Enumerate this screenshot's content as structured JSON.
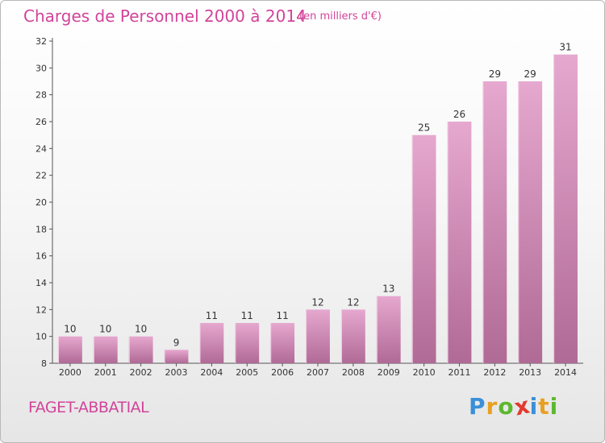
{
  "header": {
    "title": "Charges de Personnel 2000 à 2014",
    "subtitle": "(en milliers d'€)"
  },
  "footer": {
    "commune": "FAGET-ABBATIAL",
    "logo": {
      "text": "Proxiti",
      "letters": [
        {
          "char": "P",
          "color": "#3a8fd8"
        },
        {
          "char": "r",
          "color": "#e8a020"
        },
        {
          "char": "o",
          "color": "#5cb82e"
        },
        {
          "char": "x",
          "color": "#e23a2e"
        },
        {
          "char": "i",
          "color": "#3a8fd8"
        },
        {
          "char": "t",
          "color": "#e8a020"
        },
        {
          "char": "i",
          "color": "#5cb82e"
        }
      ]
    }
  },
  "colors": {
    "accent": "#d2449a",
    "bar_light": "#e6a8cf",
    "bar_dark": "#b06a96"
  },
  "chart_data": {
    "type": "bar",
    "title": "Charges de Personnel 2000 à 2014",
    "subtitle": "(en milliers d'€)",
    "categories": [
      "2000",
      "2001",
      "2002",
      "2003",
      "2004",
      "2005",
      "2006",
      "2007",
      "2008",
      "2009",
      "2010",
      "2011",
      "2012",
      "2013",
      "2014"
    ],
    "values": [
      10,
      10,
      10,
      9,
      11,
      11,
      11,
      12,
      12,
      13,
      25,
      26,
      29,
      29,
      31
    ],
    "ylim": [
      8,
      32
    ],
    "yticks": [
      8,
      10,
      12,
      14,
      16,
      18,
      20,
      22,
      24,
      26,
      28,
      30,
      32
    ],
    "grid": false,
    "legend": "none"
  }
}
